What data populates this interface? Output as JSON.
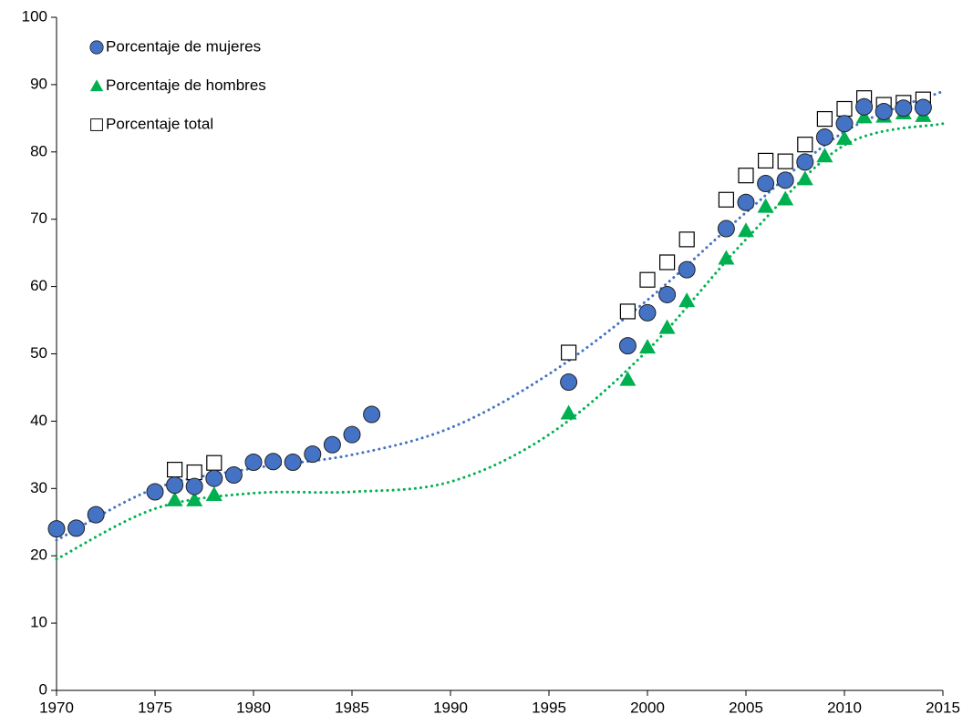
{
  "chart_data": {
    "type": "scatter",
    "xlim": [
      1970,
      2015
    ],
    "xticks": [
      1970,
      1975,
      1980,
      1985,
      1990,
      1995,
      2000,
      2005,
      2010,
      2015
    ],
    "ylim": [
      0,
      100
    ],
    "yticks": [
      0,
      10,
      20,
      30,
      40,
      50,
      60,
      70,
      80,
      90,
      100
    ],
    "grid": false,
    "legend": "top-left",
    "series": [
      {
        "name": "Porcentaje de mujeres",
        "color": "#4472c4",
        "marker": "circle",
        "x": [
          1970,
          1971,
          1972,
          1975,
          1976,
          1977,
          1978,
          1979,
          1980,
          1981,
          1982,
          1983,
          1984,
          1985,
          1986,
          1996,
          1999,
          2000,
          2001,
          2002,
          2004,
          2005,
          2006,
          2007,
          2008,
          2009,
          2010,
          2011,
          2012,
          2013,
          2014
        ],
        "values": [
          24,
          24.1,
          26.1,
          29.5,
          30.5,
          30.3,
          31.5,
          32,
          33.9,
          34,
          33.9,
          35.1,
          36.5,
          38,
          41,
          45.8,
          51.2,
          56.1,
          58.8,
          62.5,
          68.6,
          72.5,
          75.3,
          75.8,
          78.5,
          82.2,
          84.2,
          86.7,
          86,
          86.5,
          86.6
        ]
      },
      {
        "name": "Porcentaje de hombres",
        "color": "#00b050",
        "marker": "triangle",
        "x": [
          1976,
          1977,
          1978,
          1996,
          1999,
          2000,
          2001,
          2002,
          2004,
          2005,
          2006,
          2007,
          2008,
          2009,
          2010,
          2011,
          2012,
          2013,
          2014
        ],
        "values": [
          28.3,
          28.3,
          29.1,
          41.2,
          46.2,
          51,
          53.9,
          57.9,
          64.2,
          68.3,
          71.9,
          73,
          76,
          79.4,
          82,
          85.2,
          85.3,
          85.8,
          85.4
        ]
      },
      {
        "name": "Porcentaje total",
        "color": "#ffffff",
        "marker": "square",
        "x": [
          1976,
          1977,
          1978,
          1996,
          1999,
          2000,
          2001,
          2002,
          2004,
          2005,
          2006,
          2007,
          2008,
          2009,
          2010,
          2011,
          2012,
          2013,
          2014
        ],
        "values": [
          32.8,
          32.4,
          33.8,
          50.2,
          56.3,
          61,
          63.6,
          67,
          72.9,
          76.5,
          78.7,
          78.6,
          81.1,
          84.9,
          86.4,
          88,
          87,
          87.3,
          87.8
        ]
      }
    ],
    "trendlines": [
      {
        "color": "#4472c4",
        "x": [
          1970,
          1975,
          1980,
          1985,
          1990,
          1995,
          2000,
          2005,
          2010,
          2015
        ],
        "values": [
          22.3,
          30,
          33,
          35,
          39,
          47,
          58,
          71,
          83,
          89
        ]
      },
      {
        "color": "#00b050",
        "x": [
          1970,
          1975,
          1980,
          1985,
          1990,
          1995,
          2000,
          2005,
          2010,
          2015
        ],
        "values": [
          19.5,
          27,
          29.3,
          29.5,
          31,
          38,
          50.5,
          67,
          81,
          84.2
        ]
      }
    ]
  }
}
